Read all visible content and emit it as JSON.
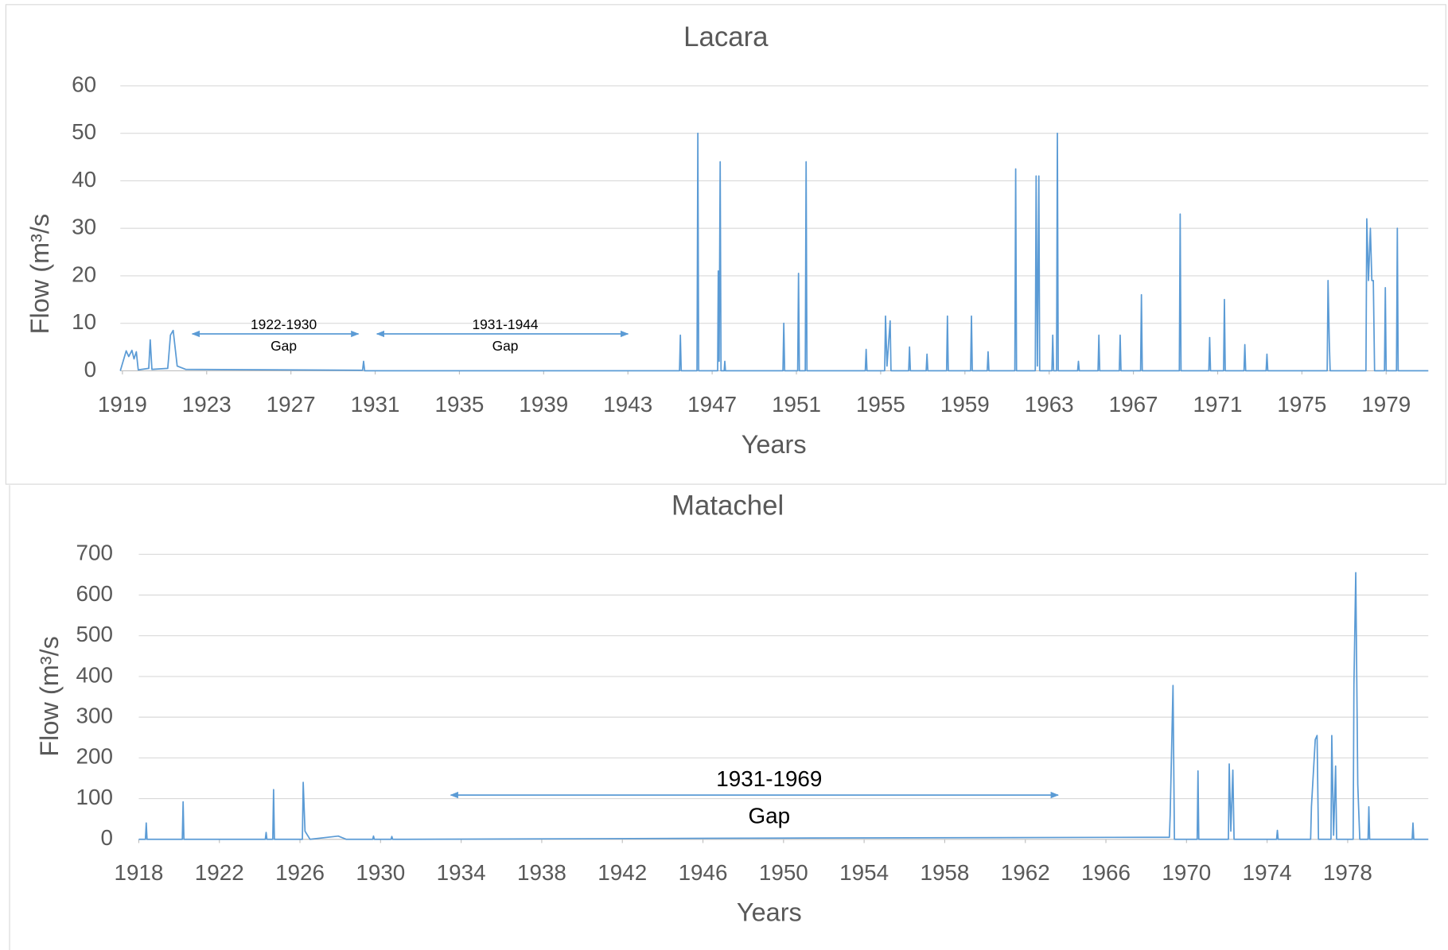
{
  "chart_data": [
    {
      "type": "line",
      "title": "Lacara",
      "x_label": "Years",
      "y_label": "Flow (m³/s",
      "color": "#5b9bd5",
      "xlim": [
        1918.9,
        1981
      ],
      "xticks": [
        1919,
        1923,
        1927,
        1931,
        1935,
        1939,
        1943,
        1947,
        1951,
        1955,
        1959,
        1963,
        1967,
        1971,
        1975,
        1979
      ],
      "ylim": [
        0,
        60
      ],
      "yticks": [
        0,
        10,
        20,
        30,
        40,
        50,
        60
      ],
      "grid": true,
      "annotations": [
        {
          "label": "1922-1930",
          "note": "Gap"
        },
        {
          "label": "1931-1944",
          "note": "Gap"
        }
      ],
      "x": [
        1918.9,
        1919.18,
        1919.3,
        1919.45,
        1919.55,
        1919.66,
        1919.75,
        1920.25,
        1920.32,
        1920.4,
        1921.15,
        1921.19,
        1921.28,
        1921.41,
        1921.6,
        1922,
        1930.4,
        1930.45,
        1930.5,
        1945.45,
        1945.49,
        1945.53,
        1946.28,
        1946.32,
        1946.36,
        1947.26,
        1947.29,
        1947.33,
        1947.38,
        1947.42,
        1947.57,
        1947.6,
        1947.63,
        1950.36,
        1950.4,
        1950.44,
        1951.06,
        1951.1,
        1951.14,
        1951.42,
        1951.46,
        1951.5,
        1954.27,
        1954.31,
        1954.35,
        1955.19,
        1955.23,
        1955.3,
        1955.45,
        1955.49,
        1956.33,
        1956.37,
        1956.41,
        1957.16,
        1957.2,
        1957.24,
        1958.13,
        1958.17,
        1958.21,
        1959.27,
        1959.31,
        1959.35,
        1960.06,
        1960.1,
        1960.14,
        1961.37,
        1961.41,
        1961.45,
        1962.34,
        1962.38,
        1962.44,
        1962.51,
        1962.55,
        1963.13,
        1963.17,
        1963.21,
        1963.35,
        1963.39,
        1963.43,
        1964.35,
        1964.39,
        1964.43,
        1965.32,
        1965.36,
        1965.4,
        1966.33,
        1966.37,
        1966.41,
        1967.34,
        1967.38,
        1967.42,
        1969.18,
        1969.22,
        1969.26,
        1970.58,
        1970.62,
        1970.66,
        1971.28,
        1971.32,
        1971.36,
        1972.25,
        1972.29,
        1972.33,
        1973.3,
        1973.34,
        1973.38,
        1976.2,
        1976.24,
        1976.3,
        1976.34,
        1978.04,
        1978.08,
        1978.16,
        1978.25,
        1978.32,
        1978.39,
        1978.45,
        1978.92,
        1978.96,
        1979.0,
        1979.49,
        1979.53,
        1979.57,
        1981
      ],
      "values": [
        0,
        4.2,
        3,
        4.3,
        2.5,
        4,
        0.2,
        0.5,
        6.5,
        0.3,
        0.5,
        2.5,
        7.5,
        8.5,
        1,
        0.3,
        0.1,
        2,
        0,
        0,
        7.5,
        0,
        0,
        50,
        0,
        0,
        21,
        2,
        44,
        0,
        0,
        2,
        0,
        0,
        10,
        0,
        0,
        20.5,
        0,
        0,
        44,
        0,
        0,
        4.5,
        0,
        0,
        11.5,
        1,
        10.5,
        0,
        0,
        5,
        0,
        0,
        3.5,
        0,
        0,
        11.5,
        0,
        0,
        11.5,
        0,
        0,
        4,
        0,
        0,
        42.5,
        0,
        0,
        41,
        1,
        41,
        0,
        0,
        7.5,
        0,
        0,
        50,
        0,
        0,
        2,
        0,
        0,
        7.5,
        0,
        0,
        7.5,
        0,
        0,
        16,
        0,
        0,
        33,
        0,
        0,
        7,
        0,
        0,
        15,
        0,
        0,
        5.5,
        0,
        0,
        3.5,
        0,
        0,
        19,
        6,
        0,
        0,
        32,
        19,
        30,
        19,
        19,
        0,
        0,
        17.5,
        0,
        0,
        30,
        0,
        0
      ]
    },
    {
      "type": "line",
      "title": "Matachel",
      "x_label": "Years",
      "y_label": "Flow (m³/s",
      "color": "#5b9bd5",
      "xlim": [
        1918,
        1982
      ],
      "xticks": [
        1918,
        1922,
        1926,
        1930,
        1934,
        1938,
        1942,
        1946,
        1950,
        1954,
        1958,
        1962,
        1966,
        1970,
        1974,
        1978
      ],
      "ylim": [
        0,
        700
      ],
      "yticks": [
        0,
        100,
        200,
        300,
        400,
        500,
        600,
        700
      ],
      "grid": true,
      "annotations": [
        {
          "label": "1931-1969",
          "note": "Gap"
        }
      ],
      "x": [
        1918,
        1918.33,
        1918.37,
        1918.41,
        1920.16,
        1920.2,
        1920.24,
        1924.28,
        1924.32,
        1924.36,
        1924.65,
        1924.69,
        1924.73,
        1926.12,
        1926.16,
        1926.25,
        1926.5,
        1927.9,
        1928.3,
        1929.61,
        1929.65,
        1929.69,
        1930.52,
        1930.56,
        1930.6,
        1950,
        1968,
        1969.15,
        1969.19,
        1969.33,
        1969.4,
        1970.53,
        1970.57,
        1970.61,
        1972.08,
        1972.12,
        1972.2,
        1972.3,
        1972.36,
        1974.47,
        1974.51,
        1974.55,
        1976.16,
        1976.2,
        1976.39,
        1976.48,
        1976.55,
        1977.17,
        1977.21,
        1977.3,
        1977.4,
        1977.45,
        1978.27,
        1978.31,
        1978.4,
        1978.5,
        1978.6,
        1979.01,
        1979.05,
        1979.09,
        1981.2,
        1981.24,
        1981.28,
        1982
      ],
      "values": [
        0,
        0,
        40,
        0,
        0,
        92,
        0,
        0,
        17,
        0,
        0,
        122,
        0,
        0,
        140,
        20,
        0,
        8,
        0,
        0,
        8,
        0,
        0,
        7,
        0,
        3,
        5,
        5,
        60,
        378,
        0,
        0,
        168,
        0,
        0,
        185,
        20,
        170,
        0,
        0,
        22,
        0,
        0,
        80,
        245,
        255,
        0,
        0,
        255,
        10,
        180,
        0,
        0,
        380,
        655,
        135,
        0,
        0,
        80,
        0,
        0,
        40,
        0,
        0
      ]
    }
  ]
}
